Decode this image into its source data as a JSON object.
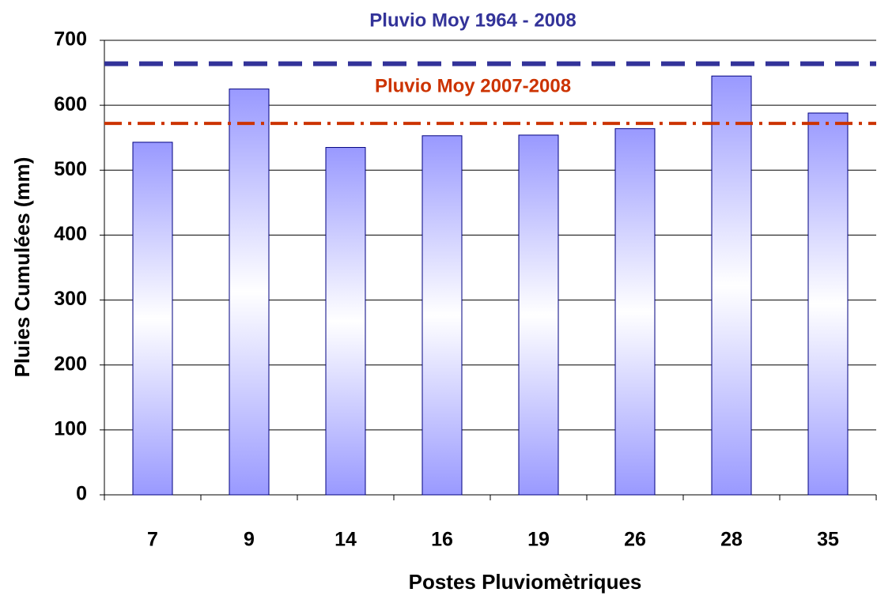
{
  "chart_data": {
    "type": "bar",
    "x_label": "Postes Pluviomètriques",
    "y_label": "Pluies Cumulées (mm)",
    "categories": [
      "7",
      "9",
      "14",
      "16",
      "19",
      "26",
      "28",
      "35"
    ],
    "values": [
      543,
      625,
      535,
      553,
      554,
      564,
      645,
      588
    ],
    "color": "#9999ff",
    "ylim": [
      0,
      700
    ],
    "yticks": [
      0,
      100,
      200,
      300,
      400,
      500,
      600,
      700
    ],
    "grid": true,
    "reference_lines": [
      {
        "label": "Pluvio Moy 1964 - 2008",
        "value": 664,
        "color": "#333399",
        "style": "dashed"
      },
      {
        "label": "Pluvio Moy 2007-2008",
        "value": 572,
        "color": "#cc3300",
        "style": "dashdot"
      }
    ]
  }
}
